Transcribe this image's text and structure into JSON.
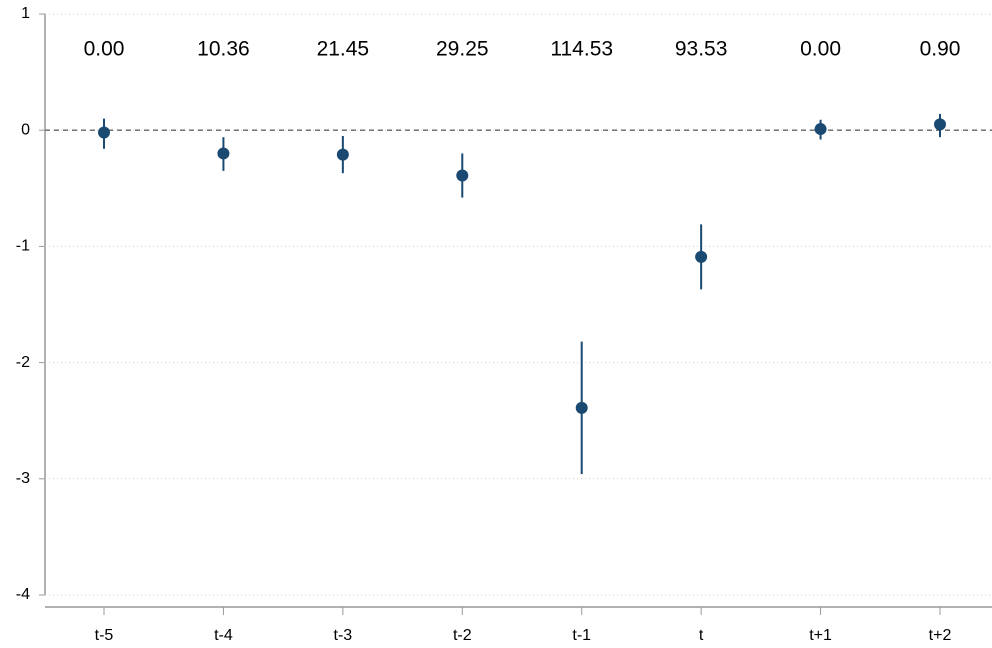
{
  "chart_data": {
    "type": "errorbar",
    "categories": [
      "t-5",
      "t-4",
      "t-3",
      "t-2",
      "t-1",
      "t",
      "t+1",
      "t+2"
    ],
    "values": [
      -0.02,
      -0.2,
      -0.21,
      -0.39,
      -2.39,
      -1.09,
      0.01,
      0.05
    ],
    "ci_low": [
      -0.16,
      -0.35,
      -0.37,
      -0.58,
      -2.96,
      -1.37,
      -0.08,
      -0.06
    ],
    "ci_high": [
      0.1,
      -0.06,
      -0.05,
      -0.2,
      -1.82,
      -0.81,
      0.09,
      0.14
    ],
    "annotations": [
      "0.00",
      "10.36",
      "21.45",
      "29.25",
      "114.53",
      "93.53",
      "0.00",
      "0.90"
    ],
    "color": "#1a4a72",
    "hline": 0,
    "ylim": [
      -4,
      1
    ],
    "yticks": [
      -4,
      -3,
      -2,
      -1,
      0,
      1
    ],
    "grid": true
  }
}
